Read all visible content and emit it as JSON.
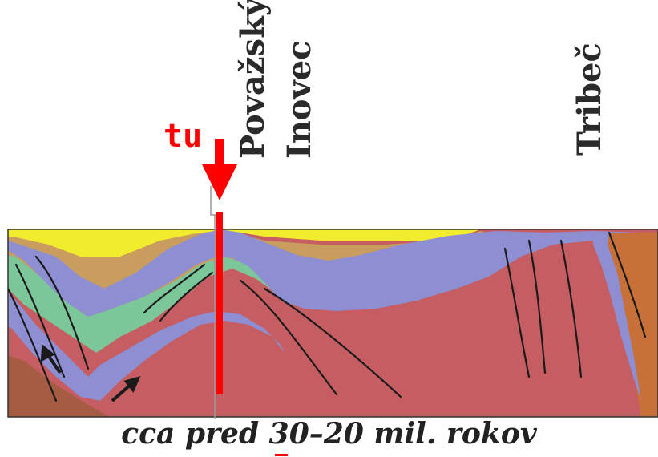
{
  "labels": {
    "povazsky": "Považský",
    "inovec": "Inovec",
    "tribec": "Tribeč"
  },
  "marker": {
    "text": "tu"
  },
  "caption": "cca pred 30–20 mil. rokov",
  "colors": {
    "yellow": "#f2ec2e",
    "tan": "#c99d5e",
    "green": "#7cc79a",
    "purple": "#8e8ed3",
    "red": "#c65d62",
    "brown": "#a55c43",
    "orange": "#c8703a",
    "marker": "#ff0000"
  }
}
